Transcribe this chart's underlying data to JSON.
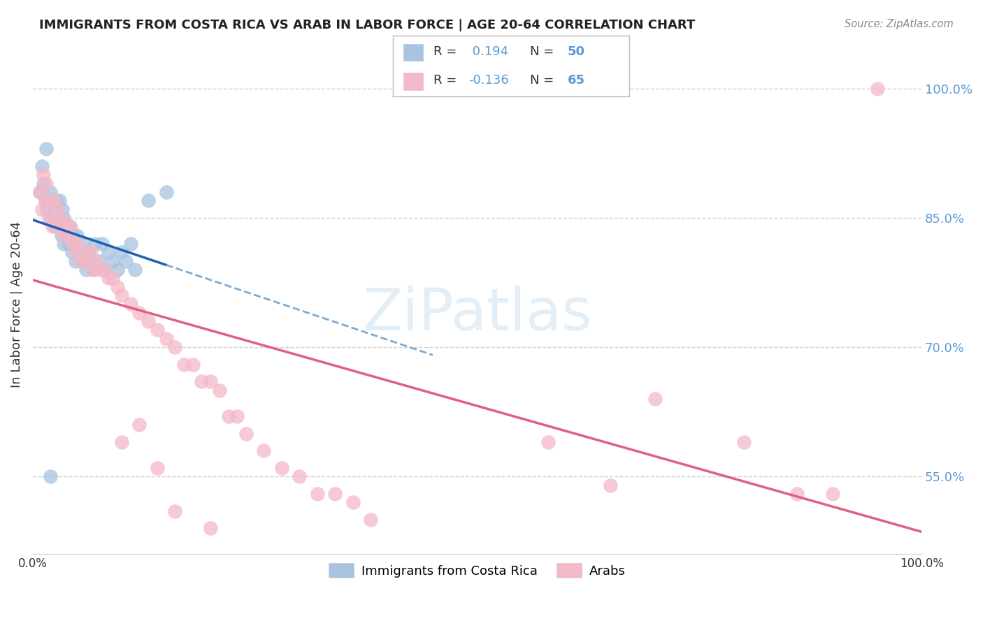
{
  "title": "IMMIGRANTS FROM COSTA RICA VS ARAB IN LABOR FORCE | AGE 20-64 CORRELATION CHART",
  "source": "Source: ZipAtlas.com",
  "ylabel": "In Labor Force | Age 20-64",
  "xlim": [
    0.0,
    1.0
  ],
  "ylim": [
    0.46,
    1.04
  ],
  "y_tick_values": [
    0.55,
    0.7,
    0.85,
    1.0
  ],
  "color_costa_rica": "#a8c4e0",
  "color_arab": "#f4b8c8",
  "line_color_costa_rica": "#2060b0",
  "line_color_arab": "#e06080",
  "watermark": "ZiPatlas",
  "background_color": "#ffffff",
  "grid_color": "#d0d0d0",
  "costa_rica_x": [
    0.008,
    0.01,
    0.012,
    0.014,
    0.015,
    0.016,
    0.018,
    0.02,
    0.02,
    0.022,
    0.024,
    0.025,
    0.026,
    0.028,
    0.03,
    0.03,
    0.032,
    0.033,
    0.035,
    0.035,
    0.036,
    0.038,
    0.04,
    0.042,
    0.044,
    0.045,
    0.046,
    0.048,
    0.05,
    0.052,
    0.055,
    0.058,
    0.06,
    0.062,
    0.065,
    0.068,
    0.07,
    0.075,
    0.078,
    0.08,
    0.085,
    0.09,
    0.095,
    0.1,
    0.105,
    0.11,
    0.115,
    0.13,
    0.15,
    0.02
  ],
  "costa_rica_y": [
    0.88,
    0.91,
    0.89,
    0.87,
    0.93,
    0.86,
    0.87,
    0.85,
    0.88,
    0.87,
    0.86,
    0.84,
    0.87,
    0.85,
    0.84,
    0.87,
    0.83,
    0.86,
    0.82,
    0.85,
    0.84,
    0.83,
    0.82,
    0.84,
    0.81,
    0.83,
    0.82,
    0.8,
    0.83,
    0.81,
    0.8,
    0.82,
    0.79,
    0.81,
    0.8,
    0.79,
    0.82,
    0.8,
    0.82,
    0.79,
    0.81,
    0.8,
    0.79,
    0.81,
    0.8,
    0.82,
    0.79,
    0.87,
    0.88,
    0.55
  ],
  "arab_x": [
    0.008,
    0.01,
    0.012,
    0.014,
    0.015,
    0.018,
    0.02,
    0.022,
    0.024,
    0.025,
    0.028,
    0.03,
    0.032,
    0.035,
    0.038,
    0.04,
    0.042,
    0.045,
    0.048,
    0.05,
    0.055,
    0.058,
    0.06,
    0.065,
    0.068,
    0.07,
    0.075,
    0.08,
    0.085,
    0.09,
    0.095,
    0.1,
    0.11,
    0.12,
    0.13,
    0.14,
    0.15,
    0.16,
    0.17,
    0.18,
    0.19,
    0.2,
    0.21,
    0.22,
    0.23,
    0.24,
    0.26,
    0.28,
    0.3,
    0.32,
    0.34,
    0.36,
    0.38,
    0.2,
    0.16,
    0.14,
    0.12,
    0.1,
    0.58,
    0.65,
    0.7,
    0.8,
    0.86,
    0.9,
    0.95
  ],
  "arab_y": [
    0.88,
    0.86,
    0.9,
    0.87,
    0.89,
    0.85,
    0.87,
    0.84,
    0.87,
    0.85,
    0.86,
    0.84,
    0.85,
    0.83,
    0.84,
    0.83,
    0.84,
    0.82,
    0.81,
    0.82,
    0.8,
    0.81,
    0.8,
    0.81,
    0.79,
    0.8,
    0.79,
    0.79,
    0.78,
    0.78,
    0.77,
    0.76,
    0.75,
    0.74,
    0.73,
    0.72,
    0.71,
    0.7,
    0.68,
    0.68,
    0.66,
    0.66,
    0.65,
    0.62,
    0.62,
    0.6,
    0.58,
    0.56,
    0.55,
    0.53,
    0.53,
    0.52,
    0.5,
    0.49,
    0.51,
    0.56,
    0.61,
    0.59,
    0.59,
    0.54,
    0.64,
    0.59,
    0.53,
    0.53,
    1.0
  ]
}
